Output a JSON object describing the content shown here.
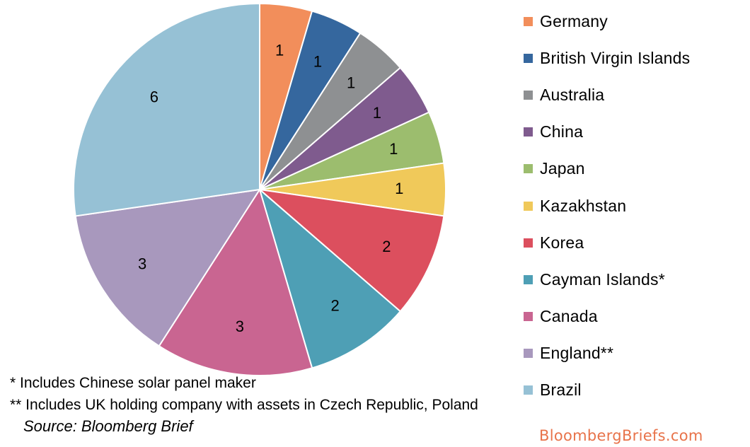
{
  "chart_data": {
    "type": "pie",
    "title": "",
    "slices": [
      {
        "label": "Germany",
        "value": 1,
        "color": "#f28e5b"
      },
      {
        "label": "British Virgin Islands",
        "value": 1,
        "color": "#35679e"
      },
      {
        "label": "Australia",
        "value": 1,
        "color": "#8e9092"
      },
      {
        "label": "China",
        "value": 1,
        "color": "#7f5b8e"
      },
      {
        "label": "Japan",
        "value": 1,
        "color": "#9cbd6e"
      },
      {
        "label": "Kazakhstan",
        "value": 1,
        "color": "#f0c95a"
      },
      {
        "label": "Korea",
        "value": 2,
        "color": "#dc4f5e"
      },
      {
        "label": "Cayman Islands*",
        "value": 2,
        "color": "#4e9fb5"
      },
      {
        "label": "Canada",
        "value": 3,
        "color": "#c96591"
      },
      {
        "label": "England**",
        "value": 3,
        "color": "#a898bd"
      },
      {
        "label": "Brazil",
        "value": 6,
        "color": "#96c1d5"
      }
    ],
    "legend_position": "right",
    "data_labels": true
  },
  "notes": {
    "footnote_1": "* Includes Chinese solar panel maker",
    "footnote_2": "** Includes UK holding company with assets in Czech Republic, Poland",
    "source": "Source: Bloomberg Brief",
    "brand": "BloombergBriefs.com"
  }
}
